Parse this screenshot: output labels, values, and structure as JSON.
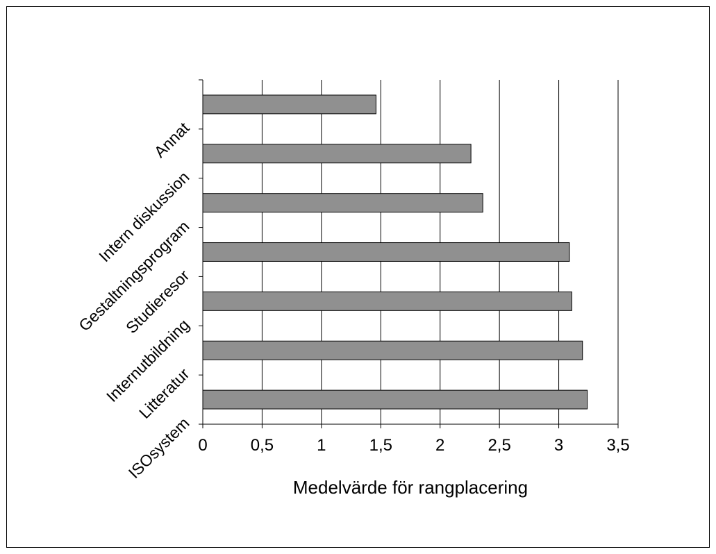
{
  "chart_data": {
    "type": "bar",
    "orientation": "horizontal",
    "categories": [
      "Annat",
      "Intern diskussion",
      "Gestaltningsprogram",
      "Studieresor",
      "Internutbildning",
      "Litteratur",
      "ISOsystem"
    ],
    "values": [
      1.46,
      2.26,
      2.36,
      3.09,
      3.11,
      3.2,
      3.24
    ],
    "xlabel": "Medelvärde för rangplacering",
    "ylabel": "",
    "xlim": [
      0,
      3.5
    ],
    "xticks": [
      "0",
      "0,5",
      "1",
      "1,5",
      "2",
      "2,5",
      "3",
      "3,5"
    ],
    "grid": "vertical",
    "legend": "none",
    "bar_color": "#909090"
  }
}
